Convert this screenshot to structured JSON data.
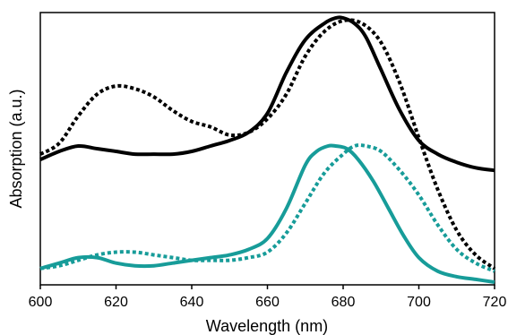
{
  "chart_data": {
    "type": "line",
    "xlabel": "Wavelength (nm)",
    "ylabel": "Absorption (a.u.)",
    "xlim": [
      600,
      720
    ],
    "ylim": [
      0,
      1
    ],
    "y_tick_labels": "none",
    "grid": false,
    "legend": "none",
    "x_ticks": [
      600,
      620,
      640,
      660,
      680,
      700,
      720
    ],
    "series": [
      {
        "color": "#000000",
        "style": "solid",
        "x": [
          600,
          605,
          610,
          615,
          620,
          625,
          630,
          635,
          640,
          645,
          650,
          655,
          660,
          665,
          670,
          675,
          678,
          680,
          683,
          686,
          690,
          695,
          700,
          705,
          710,
          715,
          720
        ],
        "y": [
          0.46,
          0.49,
          0.51,
          0.5,
          0.49,
          0.48,
          0.48,
          0.48,
          0.49,
          0.51,
          0.53,
          0.56,
          0.63,
          0.78,
          0.9,
          0.96,
          0.98,
          0.98,
          0.96,
          0.91,
          0.79,
          0.64,
          0.53,
          0.48,
          0.45,
          0.43,
          0.42
        ]
      },
      {
        "color": "#000000",
        "style": "dotted",
        "x": [
          600,
          605,
          610,
          615,
          620,
          625,
          630,
          635,
          640,
          645,
          650,
          655,
          660,
          665,
          670,
          675,
          680,
          685,
          690,
          695,
          700,
          705,
          710,
          715,
          720
        ],
        "y": [
          0.48,
          0.52,
          0.62,
          0.7,
          0.73,
          0.72,
          0.69,
          0.64,
          0.6,
          0.58,
          0.55,
          0.56,
          0.61,
          0.7,
          0.84,
          0.93,
          0.97,
          0.96,
          0.89,
          0.74,
          0.54,
          0.35,
          0.2,
          0.11,
          0.06
        ]
      },
      {
        "color": "#179c99",
        "style": "solid",
        "x": [
          600,
          605,
          610,
          615,
          620,
          625,
          630,
          635,
          640,
          645,
          650,
          655,
          660,
          665,
          670,
          673,
          676,
          678,
          681,
          684,
          688,
          692,
          696,
          700,
          705,
          710,
          715,
          720
        ],
        "y": [
          0.06,
          0.08,
          0.1,
          0.1,
          0.08,
          0.07,
          0.07,
          0.08,
          0.09,
          0.1,
          0.11,
          0.13,
          0.17,
          0.28,
          0.44,
          0.49,
          0.51,
          0.51,
          0.5,
          0.46,
          0.38,
          0.28,
          0.18,
          0.1,
          0.05,
          0.03,
          0.02,
          0.01
        ]
      },
      {
        "color": "#179c99",
        "style": "dotted",
        "x": [
          600,
          605,
          610,
          615,
          620,
          625,
          630,
          635,
          640,
          645,
          650,
          655,
          660,
          665,
          670,
          675,
          680,
          683,
          686,
          690,
          695,
          700,
          705,
          710,
          715,
          720
        ],
        "y": [
          0.06,
          0.07,
          0.09,
          0.11,
          0.12,
          0.12,
          0.11,
          0.1,
          0.09,
          0.09,
          0.09,
          0.1,
          0.12,
          0.19,
          0.3,
          0.41,
          0.48,
          0.51,
          0.51,
          0.49,
          0.42,
          0.33,
          0.22,
          0.13,
          0.08,
          0.05
        ]
      }
    ]
  }
}
